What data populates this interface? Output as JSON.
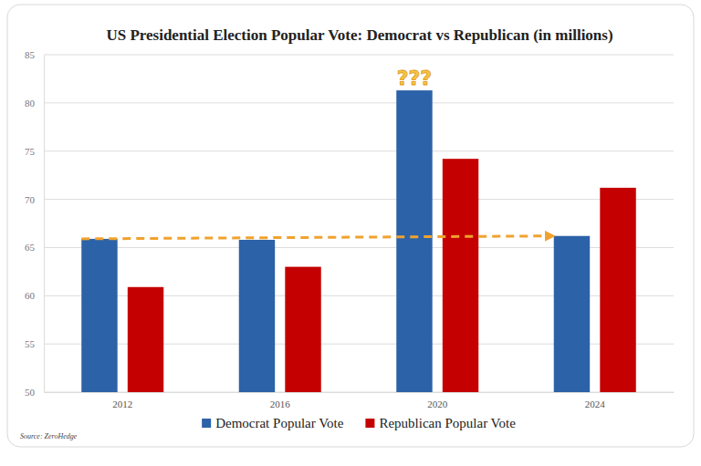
{
  "chart_data": {
    "type": "bar",
    "title": "US Presidential Election Popular Vote: Democrat vs Republican (in millions)",
    "categories": [
      "2012",
      "2016",
      "2020",
      "2024"
    ],
    "series": [
      {
        "name": "Democrat Popular Vote",
        "color": "#2c62a8",
        "values": [
          65.9,
          65.8,
          81.3,
          66.2
        ]
      },
      {
        "name": "Republican Popular Vote",
        "color": "#c40000",
        "values": [
          60.9,
          63.0,
          74.2,
          71.2
        ]
      }
    ],
    "ylim": [
      50,
      85
    ],
    "yticks": [
      50,
      55,
      60,
      65,
      70,
      75,
      80,
      85
    ],
    "grid": true,
    "legend": "bottom",
    "annotations": [
      {
        "text": "???",
        "x": "2020"
      }
    ],
    "source": "Source: ZeroHedge"
  }
}
